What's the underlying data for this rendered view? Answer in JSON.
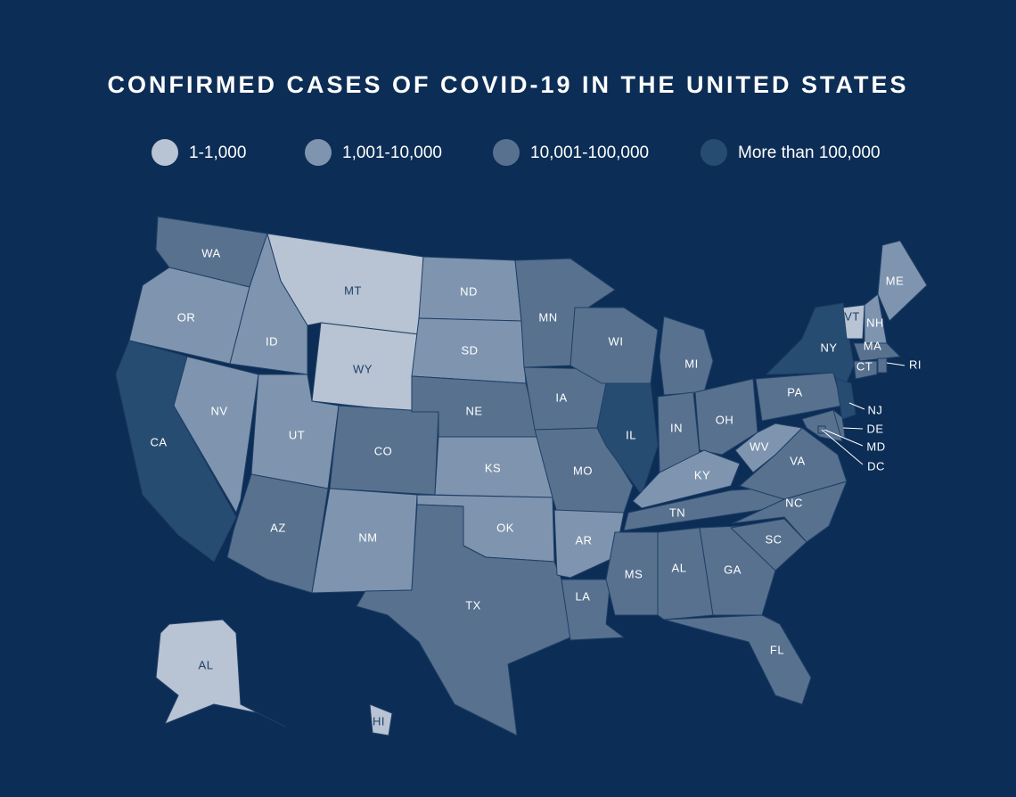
{
  "title": "CONFIRMED CASES OF COVID-19 IN THE UNITED STATES",
  "legend": [
    {
      "label": "1-1,000",
      "color": "#b8c3d3"
    },
    {
      "label": "1,001-10,000",
      "color": "#7f95af"
    },
    {
      "label": "10,001-100,000",
      "color": "#57718f"
    },
    {
      "label": "More than 100,000",
      "color": "#274c71"
    }
  ],
  "states": [
    {
      "label": "WA",
      "color": "#57718f"
    },
    {
      "label": "OR",
      "color": "#7f95af"
    },
    {
      "label": "CA",
      "color": "#274c71"
    },
    {
      "label": "NV",
      "color": "#7f95af"
    },
    {
      "label": "ID",
      "color": "#7f95af"
    },
    {
      "label": "MT",
      "color": "#b8c3d3"
    },
    {
      "label": "WY",
      "color": "#b8c3d3"
    },
    {
      "label": "UT",
      "color": "#7f95af"
    },
    {
      "label": "AZ",
      "color": "#57718f"
    },
    {
      "label": "CO",
      "color": "#57718f"
    },
    {
      "label": "NM",
      "color": "#7f95af"
    },
    {
      "label": "ND",
      "color": "#7f95af"
    },
    {
      "label": "SD",
      "color": "#7f95af"
    },
    {
      "label": "NE",
      "color": "#57718f"
    },
    {
      "label": "KS",
      "color": "#7f95af"
    },
    {
      "label": "OK",
      "color": "#7f95af"
    },
    {
      "label": "TX",
      "color": "#57718f"
    },
    {
      "label": "MN",
      "color": "#57718f"
    },
    {
      "label": "IA",
      "color": "#57718f"
    },
    {
      "label": "MO",
      "color": "#57718f"
    },
    {
      "label": "AR",
      "color": "#7f95af"
    },
    {
      "label": "LA",
      "color": "#57718f"
    },
    {
      "label": "WI",
      "color": "#57718f"
    },
    {
      "label": "IL",
      "color": "#274c71"
    },
    {
      "label": "MI",
      "color": "#57718f"
    },
    {
      "label": "IN",
      "color": "#57718f"
    },
    {
      "label": "OH",
      "color": "#57718f"
    },
    {
      "label": "KY",
      "color": "#7f95af"
    },
    {
      "label": "TN",
      "color": "#57718f"
    },
    {
      "label": "MS",
      "color": "#57718f"
    },
    {
      "label": "AL",
      "color": "#57718f"
    },
    {
      "label": "GA",
      "color": "#57718f"
    },
    {
      "label": "FL",
      "color": "#57718f"
    },
    {
      "label": "SC",
      "color": "#57718f"
    },
    {
      "label": "NC",
      "color": "#57718f"
    },
    {
      "label": "VA",
      "color": "#57718f"
    },
    {
      "label": "WV",
      "color": "#7f95af"
    },
    {
      "label": "PA",
      "color": "#57718f"
    },
    {
      "label": "NY",
      "color": "#274c71"
    },
    {
      "label": "VT",
      "color": "#b8c3d3"
    },
    {
      "label": "NH",
      "color": "#7f95af"
    },
    {
      "label": "ME",
      "color": "#7f95af"
    },
    {
      "label": "MA",
      "color": "#57718f"
    },
    {
      "label": "CT",
      "color": "#57718f"
    },
    {
      "label": "RI",
      "color": "#57718f"
    },
    {
      "label": "NJ",
      "color": "#274c71"
    },
    {
      "label": "DE",
      "color": "#57718f"
    },
    {
      "label": "MD",
      "color": "#57718f"
    },
    {
      "label": "DC",
      "color": "#57718f"
    },
    {
      "label": "AL",
      "color": "#b8c3d3"
    },
    {
      "label": "HI",
      "color": "#b8c3d3"
    }
  ]
}
